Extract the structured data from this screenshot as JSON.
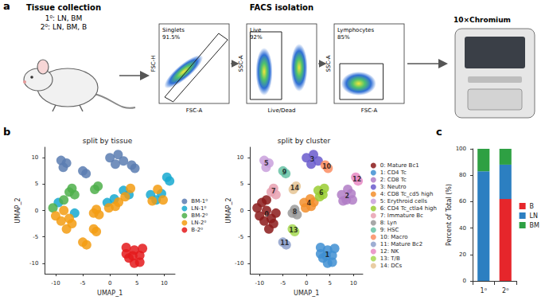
{
  "panel_labels": [
    "a",
    "b",
    "c"
  ],
  "panel_a": {
    "tissue_collection": {
      "title": "Tissue collection",
      "lines": [
        "1⁰: LN, BM",
        "2⁰: LN, BM, B"
      ]
    },
    "facs": {
      "title": "FACS isolation",
      "plots": [
        {
          "x_label": "FSC-A",
          "y_label": "FSC-H",
          "gate": "Singlets",
          "percent": "91.5%"
        },
        {
          "x_label": "Live/Dead",
          "y_label": "SSC-A",
          "gate": "Live",
          "percent": "92%"
        },
        {
          "x_label": "FSC-A",
          "y_label": "SSC-A",
          "gate": "Lymphocytes",
          "percent": "85%"
        }
      ]
    },
    "instrument": {
      "label": "10×Chromium"
    }
  },
  "chart_data": [
    {
      "type": "scatter",
      "title": "split by tissue",
      "x_label": "UMAP_1",
      "y_label": "UMAP_2",
      "xlim": [
        -12,
        12
      ],
      "ylim": [
        -12,
        12
      ],
      "xticks": [
        -10,
        -5,
        0,
        5,
        10
      ],
      "yticks": [
        -10,
        -5,
        0,
        5,
        10
      ],
      "legend": "right",
      "grid": false,
      "series": [
        {
          "name": "BM-1⁰",
          "color": "#5B7DB1",
          "values": [
            [
              0,
              10
            ],
            [
              1.5,
              10.6
            ],
            [
              2.5,
              9.4
            ],
            [
              1,
              8.8
            ],
            [
              -9,
              9.5
            ],
            [
              -8,
              9
            ],
            [
              -8.6,
              8.2
            ],
            [
              -5,
              7.5
            ],
            [
              -4.4,
              7
            ],
            [
              4,
              8.6
            ],
            [
              4.6,
              8
            ]
          ]
        },
        {
          "name": "LN-1⁰",
          "color": "#17A9D0",
          "values": [
            [
              7.5,
              3
            ],
            [
              8.5,
              2
            ],
            [
              9.5,
              3.2
            ],
            [
              2.5,
              3.8
            ],
            [
              3.5,
              3
            ],
            [
              -9.5,
              1.5
            ],
            [
              -6.5,
              -0.5
            ],
            [
              -0.5,
              1.5
            ],
            [
              0.8,
              2.2
            ],
            [
              10.5,
              6.3
            ],
            [
              11,
              5.6
            ]
          ]
        },
        {
          "name": "BM-2⁰",
          "color": "#4DAF4A",
          "values": [
            [
              -7.5,
              3.5
            ],
            [
              -6.5,
              3
            ],
            [
              -7,
              4.2
            ],
            [
              -10.5,
              0.5
            ],
            [
              -8.5,
              2
            ],
            [
              -2.8,
              4
            ],
            [
              -2.2,
              4.6
            ]
          ]
        },
        {
          "name": "LN-2⁰",
          "color": "#F39C12",
          "values": [
            [
              -8.5,
              0
            ],
            [
              -9,
              -2
            ],
            [
              -7.5,
              -1.5
            ],
            [
              -8,
              -3.5
            ],
            [
              -10,
              -1
            ],
            [
              -7,
              -2.5
            ],
            [
              -5,
              -6
            ],
            [
              -4.3,
              -6.5
            ],
            [
              -3,
              -3.5
            ],
            [
              -2.5,
              -4
            ],
            [
              -2.5,
              0.2
            ],
            [
              -2,
              -0.8
            ],
            [
              -3,
              -0.5
            ],
            [
              1,
              0.8
            ],
            [
              -0.2,
              0.5
            ],
            [
              1.6,
              1.6
            ],
            [
              8.8,
              4
            ],
            [
              7.8,
              1.8
            ],
            [
              9.8,
              2
            ],
            [
              2.8,
              2.6
            ],
            [
              3.8,
              4.2
            ]
          ]
        },
        {
          "name": "B-2⁰",
          "color": "#E41A1C",
          "values": [
            [
              3,
              -7
            ],
            [
              4.5,
              -7.5
            ],
            [
              5.5,
              -8.5
            ],
            [
              3.5,
              -9
            ],
            [
              4.5,
              -10
            ],
            [
              5.5,
              -9.8
            ],
            [
              3,
              -8.2
            ],
            [
              6,
              -7.2
            ],
            [
              4.2,
              -8.6
            ]
          ]
        }
      ]
    },
    {
      "type": "scatter",
      "title": "split by cluster",
      "x_label": "UMAP_1",
      "y_label": "UMAP_2",
      "xlim": [
        -12,
        12
      ],
      "ylim": [
        -12,
        12
      ],
      "xticks": [
        -10,
        -5,
        0,
        5,
        10
      ],
      "yticks": [
        -10,
        -5,
        0,
        5,
        10
      ],
      "legend": "right",
      "grid": false,
      "series": [
        {
          "label": "0",
          "name": "0: Mature Bc1",
          "color": "#8B1A1A",
          "values": [
            [
              -10.5,
              0.5
            ],
            [
              -9.5,
              1.5
            ],
            [
              -8.5,
              0
            ],
            [
              -9,
              -2
            ],
            [
              -7.5,
              -1.5
            ],
            [
              -8,
              -3.5
            ],
            [
              -6.5,
              -0.5
            ],
            [
              -10,
              -1
            ],
            [
              -7,
              -2.5
            ],
            [
              -8.5,
              2
            ]
          ]
        },
        {
          "label": "1",
          "name": "1: CD4 Tc",
          "color": "#3F8FD2",
          "values": [
            [
              3,
              -7
            ],
            [
              4.5,
              -7.5
            ],
            [
              5.5,
              -8.5
            ],
            [
              3.5,
              -9
            ],
            [
              4.5,
              -10
            ],
            [
              5.5,
              -9.8
            ],
            [
              3,
              -8.2
            ],
            [
              6,
              -7.2
            ],
            [
              4.2,
              -8.6
            ]
          ]
        },
        {
          "label": "2",
          "name": "2: CD8 Tc",
          "color": "#B07CC6",
          "values": [
            [
              7.5,
              3
            ],
            [
              8.5,
              2
            ],
            [
              9.5,
              3.2
            ],
            [
              8.8,
              4
            ],
            [
              7.8,
              1.8
            ],
            [
              9.8,
              2
            ]
          ]
        },
        {
          "label": "3",
          "name": "3: Neutro",
          "color": "#6A5ACD",
          "values": [
            [
              0,
              10
            ],
            [
              1.5,
              10.6
            ],
            [
              2.5,
              9.4
            ],
            [
              1,
              8.8
            ]
          ]
        },
        {
          "label": "4",
          "name": "4: CD8 Tc_cd5 high",
          "color": "#F28E2B",
          "values": [
            [
              -0.5,
              1.5
            ],
            [
              0.8,
              2.2
            ],
            [
              1,
              0.8
            ],
            [
              -0.2,
              0.5
            ],
            [
              1.6,
              1.6
            ]
          ]
        },
        {
          "label": "5",
          "name": "5: Erythroid cells",
          "color": "#C9A0DC",
          "values": [
            [
              -9,
              9.5
            ],
            [
              -8,
              9
            ],
            [
              -8.6,
              8.2
            ]
          ]
        },
        {
          "label": "6",
          "name": "6: CD4 Tc_ctla4 high",
          "color": "#9ACD32",
          "values": [
            [
              2.5,
              3.8
            ],
            [
              3.5,
              3
            ],
            [
              2.8,
              2.6
            ],
            [
              3.8,
              4.2
            ]
          ]
        },
        {
          "label": "7",
          "name": "7: Immature Bc",
          "color": "#E7A0B0",
          "values": [
            [
              -7.5,
              3.5
            ],
            [
              -6.5,
              3
            ],
            [
              -7,
              4.2
            ]
          ]
        },
        {
          "label": "8",
          "name": "8: Lyn",
          "color": "#999999",
          "values": [
            [
              -2.5,
              0.2
            ],
            [
              -2,
              -0.8
            ],
            [
              -3,
              -0.5
            ]
          ]
        },
        {
          "label": "9",
          "name": "9: HSC",
          "color": "#66C2A5",
          "values": [
            [
              -5,
              7.5
            ],
            [
              -4.4,
              7
            ]
          ]
        },
        {
          "label": "10",
          "name": "10: Macro",
          "color": "#FC8D62",
          "values": [
            [
              4,
              8.6
            ],
            [
              4.6,
              8
            ]
          ]
        },
        {
          "label": "11",
          "name": "11: Mature Bc2",
          "color": "#8DA0CB",
          "values": [
            [
              -5,
              -6
            ],
            [
              -4.3,
              -6.5
            ]
          ]
        },
        {
          "label": "12",
          "name": "12: NK",
          "color": "#E78AC3",
          "values": [
            [
              10.5,
              6.3
            ],
            [
              11,
              5.6
            ]
          ]
        },
        {
          "label": "13",
          "name": "13: T/B",
          "color": "#A6D854",
          "values": [
            [
              -3,
              -3.5
            ],
            [
              -2.5,
              -4
            ]
          ]
        },
        {
          "label": "14",
          "name": "14: DCs",
          "color": "#E5C494",
          "values": [
            [
              -2.8,
              4
            ],
            [
              -2.2,
              4.6
            ]
          ]
        }
      ]
    },
    {
      "type": "bar",
      "stacked": true,
      "categories": [
        "1⁰",
        "2⁰"
      ],
      "y_label": "Percent of Total (%)",
      "ylim": [
        0,
        100
      ],
      "yticks": [
        0,
        20,
        40,
        60,
        80,
        100
      ],
      "legend": "right",
      "grid": false,
      "series": [
        {
          "name": "B",
          "color": "#E6262B",
          "values": [
            0,
            62
          ]
        },
        {
          "name": "LN",
          "color": "#2C7FC1",
          "values": [
            83,
            26
          ]
        },
        {
          "name": "BM",
          "color": "#2EA043",
          "values": [
            17,
            12
          ]
        }
      ]
    }
  ]
}
